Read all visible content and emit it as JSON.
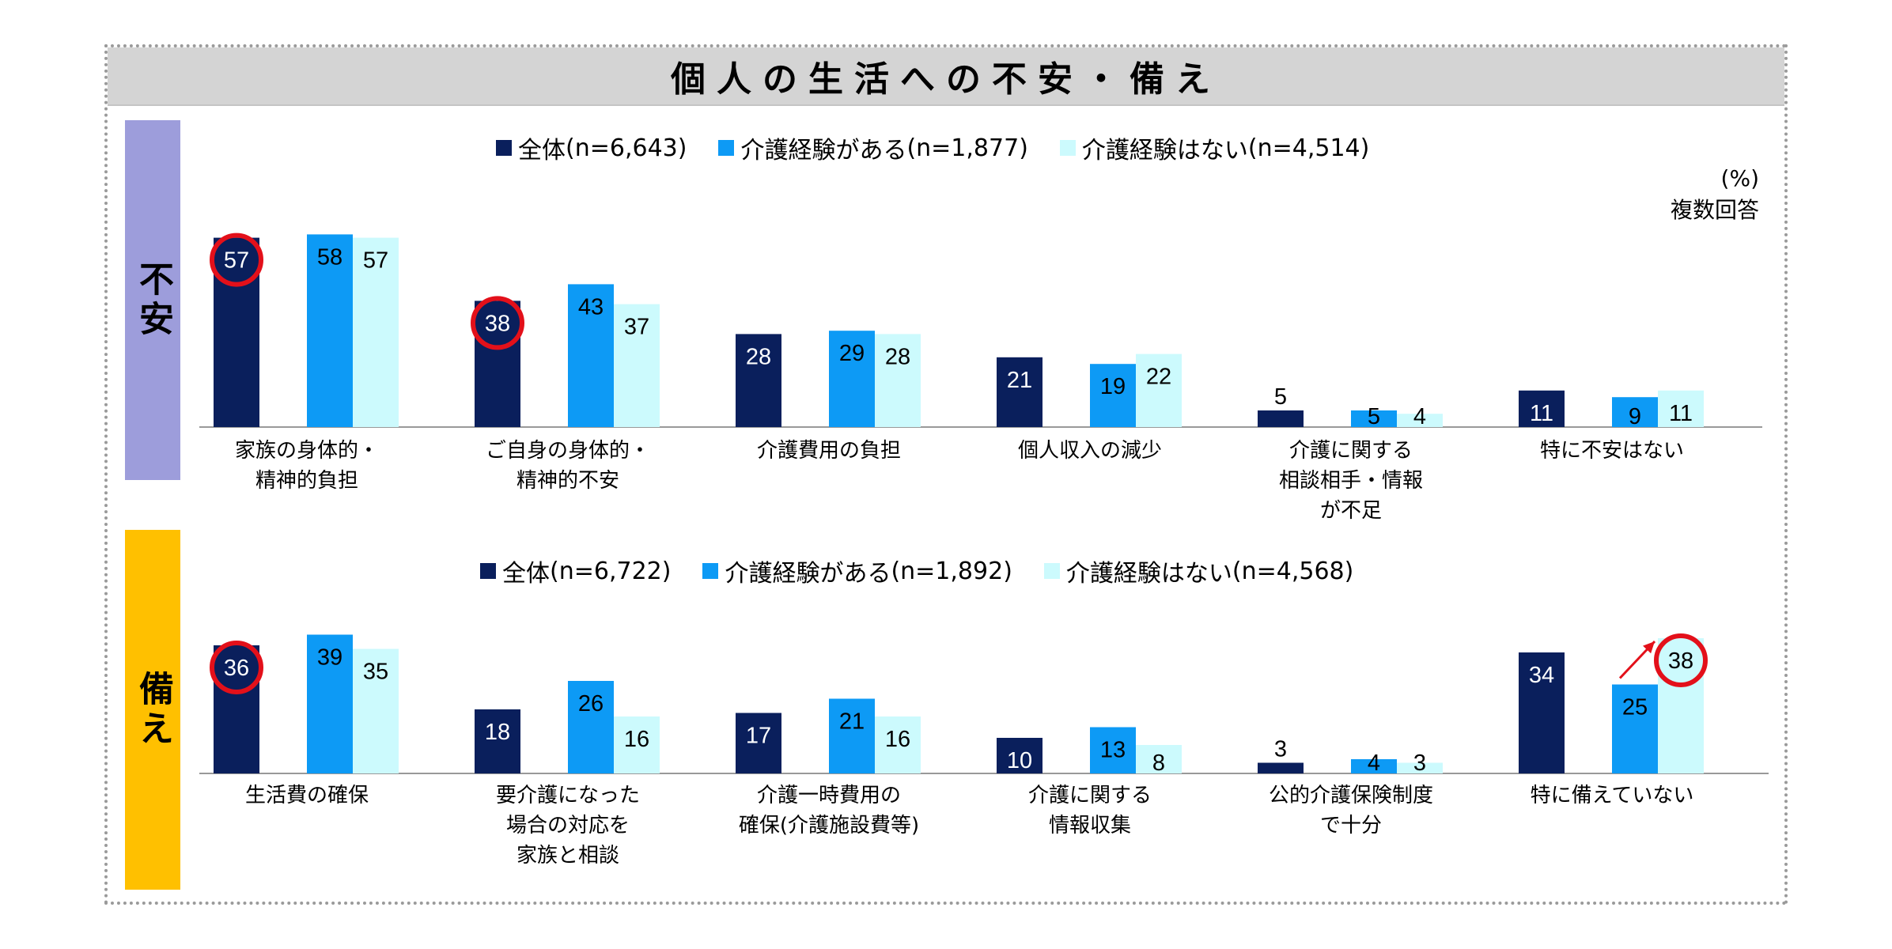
{
  "title": "個人の生活への不安・備え",
  "colors": {
    "overall": "#0a1f5c",
    "experienced": "#0d9af5",
    "none": "#ccfafd",
    "highlight": "#e3101a",
    "axis": "#999999"
  },
  "unit": {
    "percent": "(%)",
    "multiple": "複数回答"
  },
  "chart_data": [
    {
      "type": "bar",
      "section_label": "不安",
      "categories": [
        [
          "家族の身体的・",
          "精神的負担"
        ],
        [
          "ご自身の身体的・",
          "精神的不安"
        ],
        [
          "介護費用の負担"
        ],
        [
          "個人収入の減少"
        ],
        [
          "介護に関する",
          "相談相手・情報",
          "が不足"
        ],
        [
          "特に不安はない"
        ]
      ],
      "series": [
        {
          "name": "全体",
          "n": "(n=6,643)",
          "values": [
            57,
            38,
            28,
            21,
            5,
            11
          ]
        },
        {
          "name": "介護経験がある",
          "n": "(n=1,877)",
          "values": [
            58,
            43,
            29,
            19,
            5,
            9
          ]
        },
        {
          "name": "介護経験はない",
          "n": "(n=4,514)",
          "values": [
            57,
            37,
            28,
            22,
            4,
            11
          ]
        }
      ],
      "highlights": [
        {
          "series": 0,
          "index": 0
        },
        {
          "series": 0,
          "index": 1
        }
      ],
      "ylim": [
        0,
        60
      ]
    },
    {
      "type": "bar",
      "section_label": "備え",
      "categories": [
        [
          "生活費の確保"
        ],
        [
          "要介護になった",
          "場合の対応を",
          "家族と相談"
        ],
        [
          "介護一時費用の",
          "確保(介護施設費等)"
        ],
        [
          "介護に関する",
          "情報収集"
        ],
        [
          "公的介護保険制度",
          "で十分"
        ],
        [
          "特に備えていない"
        ]
      ],
      "series": [
        {
          "name": "全体",
          "n": "(n=6,722)",
          "values": [
            36,
            18,
            17,
            10,
            3,
            34
          ]
        },
        {
          "name": "介護経験がある",
          "n": "(n=1,892)",
          "values": [
            39,
            26,
            21,
            13,
            4,
            25
          ]
        },
        {
          "name": "介護経験はない",
          "n": "(n=4,568)",
          "values": [
            35,
            16,
            16,
            8,
            3,
            38
          ]
        }
      ],
      "highlights": [
        {
          "series": 0,
          "index": 0
        },
        {
          "series": 2,
          "index": 5
        }
      ],
      "arrow": {
        "from": {
          "series": 1,
          "index": 5
        },
        "to": {
          "series": 2,
          "index": 5
        }
      },
      "ylim": [
        0,
        60
      ]
    }
  ]
}
